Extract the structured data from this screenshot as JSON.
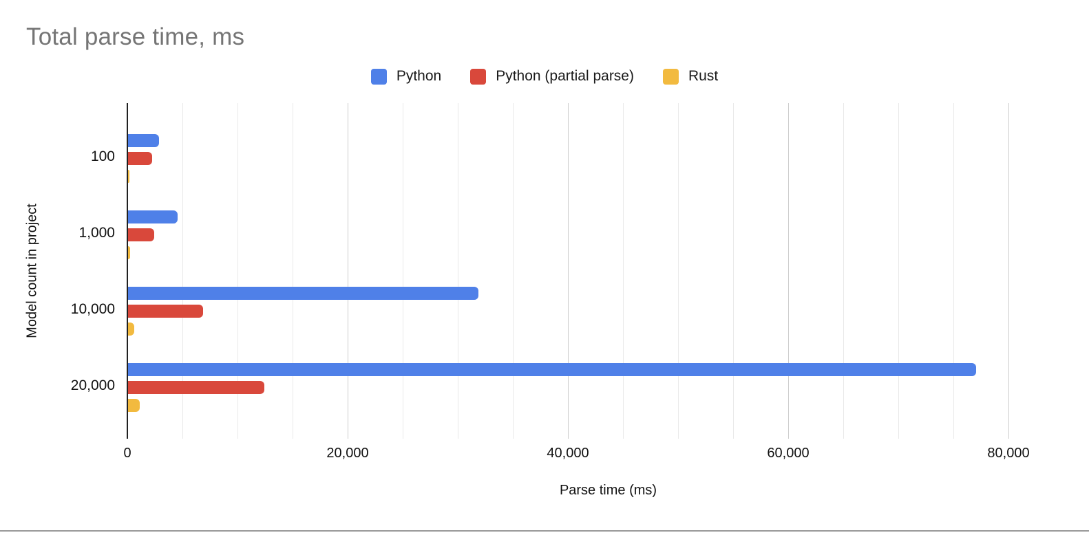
{
  "chart_data": {
    "type": "bar",
    "orientation": "horizontal",
    "title": "Total parse time, ms",
    "xlabel": "Parse time (ms)",
    "ylabel": "Model count in project",
    "categories": [
      "100",
      "1,000",
      "10,000",
      "20,000"
    ],
    "series": [
      {
        "name": "Python",
        "color": "#4F80E8",
        "values": [
          2800,
          4500,
          31800,
          77000
        ]
      },
      {
        "name": "Python (partial parse)",
        "color": "#D9483B",
        "values": [
          2200,
          2400,
          6800,
          12400
        ]
      },
      {
        "name": "Rust",
        "color": "#F2BA3F",
        "values": [
          100,
          160,
          560,
          1050
        ]
      }
    ],
    "x_ticks": [
      "0",
      "20,000",
      "40,000",
      "60,000",
      "80,000"
    ],
    "x_tick_step": 20000,
    "minor_grid_step": 5000,
    "xlim": [
      0,
      87300
    ],
    "grid": true,
    "legend_position": "top"
  },
  "colors": {
    "title_text": "#757575",
    "axis_text": "#111111",
    "axis_line": "#212121",
    "minor_gridline": "#e9e9e9",
    "major_gridline": "#cdcdcd",
    "background": "#ffffff",
    "bottom_border": "#999999"
  }
}
